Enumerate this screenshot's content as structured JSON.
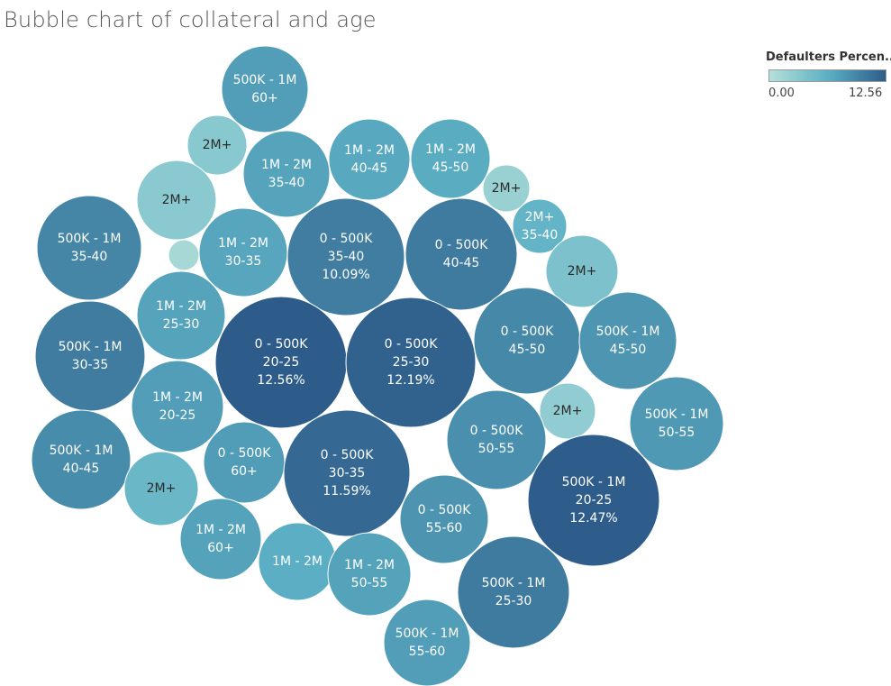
{
  "title": "Bubble chart of collateral and age",
  "legend": {
    "title": "Defaulters Percen..",
    "min_label": "0.00",
    "max_label": "12.56",
    "colors": [
      "#b5e0da",
      "#5cb0c4",
      "#2e5c8a"
    ]
  },
  "chart_data": {
    "type": "bubble",
    "title": "Bubble chart of collateral and age",
    "color_measure": "Defaulters Percen..",
    "color_range": [
      0.0,
      12.56
    ],
    "bubbles": [
      {
        "collateral": "500K - 1M",
        "age": "60+",
        "value": 7.6
      },
      {
        "collateral": "2M+",
        "age": "",
        "value": 3.2
      },
      {
        "collateral": "1M - 2M",
        "age": "35-40",
        "value": 7.2
      },
      {
        "collateral": "1M - 2M",
        "age": "40-45",
        "value": 6.8
      },
      {
        "collateral": "1M - 2M",
        "age": "45-50",
        "value": 6.6
      },
      {
        "collateral": "2M+",
        "age": "",
        "value": 2.0
      },
      {
        "collateral": "2M+",
        "age": "35-40",
        "value": 5.8
      },
      {
        "collateral": "2M+",
        "age": "",
        "value": 3.0
      },
      {
        "collateral": "500K - 1M",
        "age": "35-40",
        "value": 9.4
      },
      {
        "collateral": "",
        "age": "",
        "value": 1.0
      },
      {
        "collateral": "1M - 2M",
        "age": "30-35",
        "value": 7.0
      },
      {
        "collateral": "0 - 500K",
        "age": "35-40",
        "value": 10.09,
        "label": "10.09%"
      },
      {
        "collateral": "0 - 500K",
        "age": "40-45",
        "value": 10.3
      },
      {
        "collateral": "2M+",
        "age": "",
        "value": 4.0
      },
      {
        "collateral": "1M - 2M",
        "age": "25-30",
        "value": 7.2
      },
      {
        "collateral": "500K - 1M",
        "age": "30-35",
        "value": 10.2
      },
      {
        "collateral": "0 - 500K",
        "age": "20-25",
        "value": 12.56,
        "label": "12.56%"
      },
      {
        "collateral": "0 - 500K",
        "age": "25-30",
        "value": 12.19,
        "label": "12.19%"
      },
      {
        "collateral": "0 - 500K",
        "age": "45-50",
        "value": 9.3
      },
      {
        "collateral": "500K - 1M",
        "age": "45-50",
        "value": 8.3
      },
      {
        "collateral": "1M - 2M",
        "age": "20-25",
        "value": 7.6
      },
      {
        "collateral": "2M+",
        "age": "",
        "value": 2.6
      },
      {
        "collateral": "500K - 1M",
        "age": "50-55",
        "value": 8.0
      },
      {
        "collateral": "500K - 1M",
        "age": "40-45",
        "value": 9.0
      },
      {
        "collateral": "0 - 500K",
        "age": "60+",
        "value": 7.8
      },
      {
        "collateral": "0 - 500K",
        "age": "30-35",
        "value": 11.59,
        "label": "11.59%"
      },
      {
        "collateral": "0 - 500K",
        "age": "50-55",
        "value": 8.7
      },
      {
        "collateral": "2M+",
        "age": "",
        "value": 5.3
      },
      {
        "collateral": "500K - 1M",
        "age": "20-25",
        "value": 12.47,
        "label": "12.47%"
      },
      {
        "collateral": "0 - 500K",
        "age": "55-60",
        "value": 8.4
      },
      {
        "collateral": "1M - 2M",
        "age": "60+",
        "value": 7.3
      },
      {
        "collateral": "1M - 2M",
        "age": "",
        "value": 6.4
      },
      {
        "collateral": "1M - 2M",
        "age": "50-55",
        "value": 7.3
      },
      {
        "collateral": "500K - 1M",
        "age": "25-30",
        "value": 10.3
      },
      {
        "collateral": "500K - 1M",
        "age": "55-60",
        "value": 7.7
      }
    ]
  }
}
